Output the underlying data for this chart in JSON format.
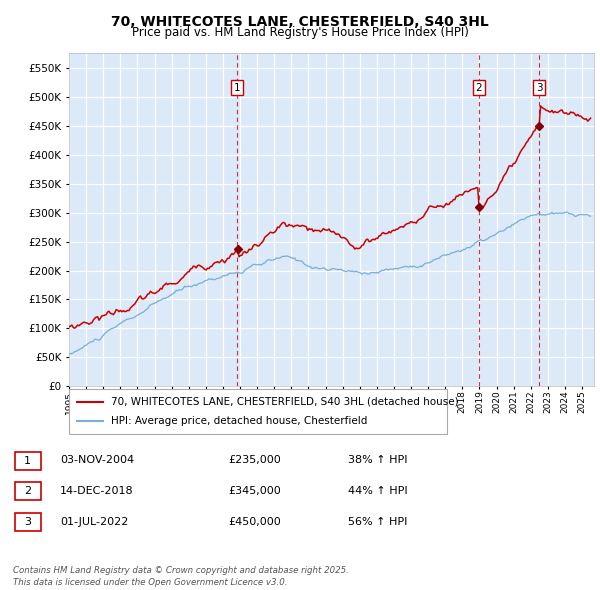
{
  "title": "70, WHITECOTES LANE, CHESTERFIELD, S40 3HL",
  "subtitle": "Price paid vs. HM Land Registry's House Price Index (HPI)",
  "ylim": [
    0,
    575000
  ],
  "yticks": [
    0,
    50000,
    100000,
    150000,
    200000,
    250000,
    300000,
    350000,
    400000,
    450000,
    500000,
    550000
  ],
  "xlim_start": 1995.0,
  "xlim_end": 2025.7,
  "plot_bg_color": "#dce9f8",
  "grid_color": "#ffffff",
  "red_color": "#cc0000",
  "blue_color": "#7aaed6",
  "legend_label_red": "70, WHITECOTES LANE, CHESTERFIELD, S40 3HL (detached house)",
  "legend_label_blue": "HPI: Average price, detached house, Chesterfield",
  "sale1_date": "03-NOV-2004",
  "sale1_price": "£235,000",
  "sale1_hpi": "38% ↑ HPI",
  "sale1_x": 2004.84,
  "sale2_date": "14-DEC-2018",
  "sale2_price": "£345,000",
  "sale2_hpi": "44% ↑ HPI",
  "sale2_x": 2018.96,
  "sale3_date": "01-JUL-2022",
  "sale3_price": "£450,000",
  "sale3_hpi": "56% ↑ HPI",
  "sale3_x": 2022.5,
  "footer": "Contains HM Land Registry data © Crown copyright and database right 2025.\nThis data is licensed under the Open Government Licence v3.0."
}
